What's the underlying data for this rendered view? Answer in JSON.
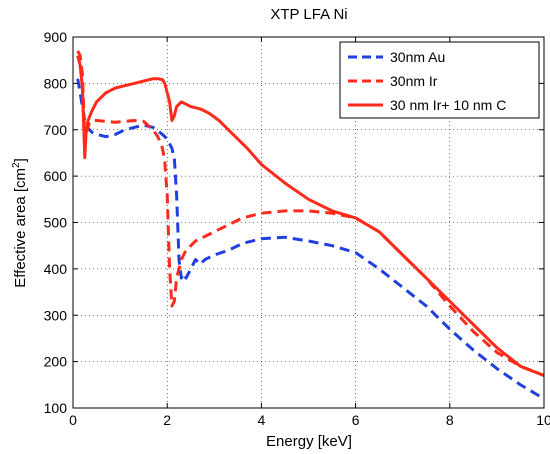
{
  "chart_data": {
    "type": "line",
    "title": "XTP LFA Ni",
    "xlabel": "Energy [keV]",
    "ylabel_main": "Effective area [cm",
    "ylabel_sup": "2",
    "ylabel_end": "]",
    "xlim": [
      0,
      10
    ],
    "ylim": [
      100,
      900
    ],
    "xticks": [
      0,
      2,
      4,
      6,
      8,
      10
    ],
    "yticks": [
      100,
      200,
      300,
      400,
      500,
      600,
      700,
      800,
      900
    ],
    "grid": true,
    "legend_position": "top-right",
    "series": [
      {
        "name": "30nm Au",
        "color": "#1f3fe0",
        "dash": "dashed",
        "x": [
          0.1,
          0.15,
          0.2,
          0.25,
          0.3,
          0.35,
          0.4,
          0.5,
          0.7,
          0.9,
          1.1,
          1.3,
          1.5,
          1.7,
          1.9,
          2.0,
          2.1,
          2.15,
          2.2,
          2.25,
          2.3,
          2.35,
          2.4,
          2.5,
          2.6,
          2.7,
          2.8,
          3.0,
          3.3,
          3.6,
          4.0,
          4.5,
          5.0,
          5.5,
          6.0,
          6.5,
          7.0,
          7.5,
          8.0,
          8.5,
          9.0,
          9.5,
          10.0
        ],
        "values": [
          810,
          780,
          750,
          720,
          705,
          700,
          695,
          690,
          685,
          690,
          700,
          705,
          710,
          705,
          690,
          680,
          660,
          640,
          560,
          420,
          380,
          390,
          380,
          400,
          420,
          410,
          420,
          430,
          440,
          455,
          465,
          468,
          460,
          450,
          435,
          400,
          360,
          320,
          270,
          225,
          185,
          150,
          120
        ]
      },
      {
        "name": "30nm Ir",
        "color": "#ff2a1a",
        "dash": "dashed",
        "x": [
          0.1,
          0.15,
          0.2,
          0.25,
          0.3,
          0.35,
          0.4,
          0.5,
          0.7,
          0.9,
          1.1,
          1.3,
          1.5,
          1.7,
          1.8,
          1.9,
          1.95,
          2.0,
          2.05,
          2.1,
          2.15,
          2.2,
          2.25,
          2.3,
          2.4,
          2.5,
          2.6,
          2.7,
          2.8,
          3.0,
          3.3,
          3.6,
          4.0,
          4.5,
          5.0,
          5.5,
          6.0,
          6.5,
          7.0,
          7.5,
          8.0,
          8.5,
          9.0,
          9.5,
          10.0
        ],
        "values": [
          870,
          860,
          820,
          680,
          700,
          715,
          720,
          720,
          718,
          716,
          718,
          720,
          718,
          700,
          685,
          660,
          630,
          560,
          400,
          320,
          330,
          380,
          400,
          420,
          440,
          450,
          460,
          465,
          470,
          480,
          495,
          510,
          520,
          525,
          525,
          520,
          510,
          480,
          430,
          380,
          320,
          265,
          220,
          190,
          170
        ]
      },
      {
        "name": "30 nm Ir+ 10 nm C",
        "color": "#ff2a1a",
        "dash": "solid",
        "x": [
          0.1,
          0.15,
          0.2,
          0.25,
          0.28,
          0.32,
          0.4,
          0.5,
          0.7,
          0.9,
          1.1,
          1.3,
          1.5,
          1.7,
          1.8,
          1.9,
          1.95,
          2.0,
          2.05,
          2.1,
          2.15,
          2.2,
          2.3,
          2.4,
          2.5,
          2.7,
          2.9,
          3.1,
          3.4,
          3.7,
          4.0,
          4.5,
          5.0,
          5.5,
          6.0,
          6.5,
          7.0,
          7.5,
          8.0,
          8.5,
          9.0,
          9.5,
          10.0
        ],
        "values": [
          860,
          840,
          790,
          640,
          700,
          720,
          740,
          760,
          780,
          790,
          795,
          800,
          805,
          810,
          810,
          808,
          800,
          780,
          760,
          720,
          730,
          750,
          760,
          755,
          750,
          745,
          735,
          720,
          690,
          660,
          625,
          585,
          550,
          525,
          510,
          480,
          430,
          380,
          330,
          280,
          230,
          190,
          170
        ]
      }
    ]
  }
}
